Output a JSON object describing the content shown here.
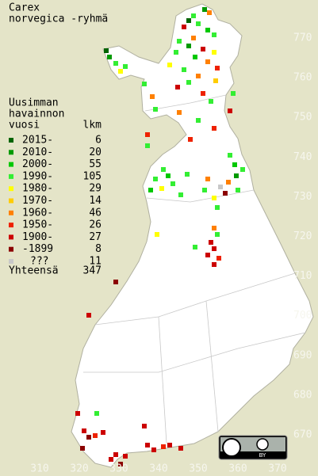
{
  "title": [
    "Carex",
    "norvegica -ryhmä"
  ],
  "legend": {
    "header": [
      "Uusimman",
      "havainnon",
      "vuosi"
    ],
    "count_header": "lkm",
    "rows": [
      {
        "label": "2015-",
        "count": 6,
        "color": "#006400"
      },
      {
        "label": "2010-",
        "count": 20,
        "color": "#009a00"
      },
      {
        "label": "2000-",
        "count": 55,
        "color": "#00c800"
      },
      {
        "label": "1990-",
        "count": 105,
        "color": "#33ee33"
      },
      {
        "label": "1980-",
        "count": 29,
        "color": "#ffff00"
      },
      {
        "label": "1970-",
        "count": 14,
        "color": "#ffcc00"
      },
      {
        "label": "1960-",
        "count": 46,
        "color": "#ff8000"
      },
      {
        "label": "1950-",
        "count": 26,
        "color": "#ee2200"
      },
      {
        "label": "1900-",
        "count": 27,
        "color": "#cc0000"
      },
      {
        "label": "-1899",
        "count": 8,
        "color": "#8b0000"
      },
      {
        "label": "???",
        "count": 11,
        "color": "#c8c8c8"
      }
    ],
    "total_label": "Yhteensä",
    "total": 347
  },
  "grid_labels": {
    "north": [
      770,
      760,
      750,
      740,
      730,
      720,
      710,
      700,
      690,
      680,
      670
    ],
    "east": [
      310,
      320,
      330,
      340,
      350,
      360,
      370
    ]
  },
  "license": "BY"
}
